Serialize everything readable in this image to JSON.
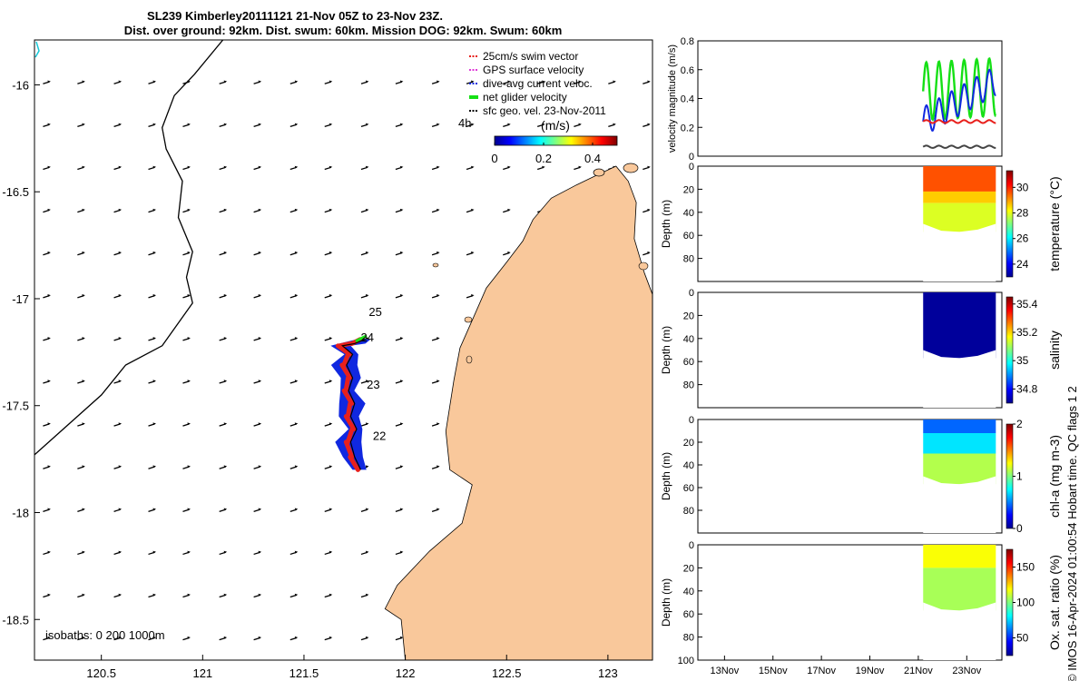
{
  "title": {
    "line1": "SL239 Kimberley20111121 21-Nov 05Z to 23-Nov 23Z.",
    "line2": "Dist. over ground: 92km. Dist. swum: 60km. Mission DOG: 92km. Swum: 60km"
  },
  "colors": {
    "land": "#f9c89b",
    "swim_vector": "#e8201c",
    "gps_velocity": "#e03ad8",
    "dive_avg_current": "#1028e0",
    "net_glider_velocity": "#16e016",
    "sfc_geo": "#000000",
    "track_start": "#17c8d8"
  },
  "chart_data": [
    {
      "type": "map",
      "name": "glider-track-map",
      "x_ticks": [
        "120.5",
        "121",
        "121.5",
        "122",
        "122.5",
        "123"
      ],
      "x_tick_values": [
        120.5,
        121,
        121.5,
        122,
        122.5,
        123
      ],
      "y_ticks": [
        "-16",
        "-16.5",
        "-17",
        "-17.5",
        "-18",
        "-18.5"
      ],
      "y_tick_values": [
        -16,
        -16.5,
        -17,
        -17.5,
        -18,
        -18.5
      ],
      "xlim": [
        120.17,
        123.22
      ],
      "ylim": [
        -18.69,
        -15.79
      ],
      "legend": [
        {
          "label": "25cm/s swim vector",
          "color": "#e8201c"
        },
        {
          "label": "GPS surface velocity",
          "color": "#e03ad8"
        },
        {
          "label": "dive-avg current veloc.",
          "color": "#1028e0"
        },
        {
          "label": "net glider velocity",
          "color": "#16e016"
        },
        {
          "label": "sfc geo. vel. 23-Nov-2011",
          "color": "#000000"
        }
      ],
      "extra_label": "4h",
      "colorbar": {
        "label": "(m/s)",
        "ticks": [
          "0",
          "0.2",
          "0.4"
        ],
        "tick_values": [
          0,
          0.2,
          0.4
        ],
        "range": [
          0,
          0.5
        ]
      },
      "isobath_label": "isobaths: 0   200  1000m",
      "day_labels": [
        {
          "text": "25",
          "lon": 121.82,
          "lat": -17.08
        },
        {
          "text": "24",
          "lon": 121.78,
          "lat": -17.2
        },
        {
          "text": "23",
          "lon": 121.81,
          "lat": -17.42
        },
        {
          "text": "22",
          "lon": 121.84,
          "lat": -17.66
        }
      ],
      "track": [
        {
          "lon": 121.78,
          "lat": -17.8
        },
        {
          "lon": 121.75,
          "lat": -17.74
        },
        {
          "lon": 121.73,
          "lat": -17.67
        },
        {
          "lon": 121.76,
          "lat": -17.61
        },
        {
          "lon": 121.73,
          "lat": -17.55
        },
        {
          "lon": 121.75,
          "lat": -17.49
        },
        {
          "lon": 121.72,
          "lat": -17.43
        },
        {
          "lon": 121.74,
          "lat": -17.37
        },
        {
          "lon": 121.71,
          "lat": -17.31
        },
        {
          "lon": 121.74,
          "lat": -17.26
        },
        {
          "lon": 121.69,
          "lat": -17.22
        },
        {
          "lon": 121.75,
          "lat": -17.21
        },
        {
          "lon": 121.8,
          "lat": -17.19
        }
      ],
      "coastline": [
        {
          "lon": 123.22,
          "lat": -18.69
        },
        {
          "lon": 122.0,
          "lat": -18.69
        },
        {
          "lon": 121.98,
          "lat": -18.5
        },
        {
          "lon": 121.9,
          "lat": -18.45
        },
        {
          "lon": 121.96,
          "lat": -18.34
        },
        {
          "lon": 122.12,
          "lat": -18.18
        },
        {
          "lon": 122.28,
          "lat": -18.05
        },
        {
          "lon": 122.33,
          "lat": -17.87
        },
        {
          "lon": 122.22,
          "lat": -17.8
        },
        {
          "lon": 122.2,
          "lat": -17.62
        },
        {
          "lon": 122.24,
          "lat": -17.38
        },
        {
          "lon": 122.27,
          "lat": -17.23
        },
        {
          "lon": 122.34,
          "lat": -17.08
        },
        {
          "lon": 122.4,
          "lat": -16.95
        },
        {
          "lon": 122.5,
          "lat": -16.83
        },
        {
          "lon": 122.58,
          "lat": -16.73
        },
        {
          "lon": 122.63,
          "lat": -16.63
        },
        {
          "lon": 122.72,
          "lat": -16.53
        },
        {
          "lon": 122.84,
          "lat": -16.47
        },
        {
          "lon": 122.95,
          "lat": -16.42
        },
        {
          "lon": 123.04,
          "lat": -16.38
        },
        {
          "lon": 123.1,
          "lat": -16.45
        },
        {
          "lon": 123.14,
          "lat": -16.55
        },
        {
          "lon": 123.13,
          "lat": -16.72
        },
        {
          "lon": 123.18,
          "lat": -16.88
        },
        {
          "lon": 123.22,
          "lat": -16.98
        }
      ],
      "isobath_1000m": [
        {
          "lon": 120.17,
          "lat": -17.73
        },
        {
          "lon": 120.5,
          "lat": -17.45
        },
        {
          "lon": 120.62,
          "lat": -17.31
        },
        {
          "lon": 120.8,
          "lat": -17.22
        },
        {
          "lon": 120.95,
          "lat": -17.02
        },
        {
          "lon": 120.92,
          "lat": -16.9
        },
        {
          "lon": 120.95,
          "lat": -16.78
        },
        {
          "lon": 120.88,
          "lat": -16.62
        },
        {
          "lon": 120.9,
          "lat": -16.45
        },
        {
          "lon": 120.82,
          "lat": -16.3
        },
        {
          "lon": 120.8,
          "lat": -16.2
        },
        {
          "lon": 120.86,
          "lat": -16.05
        },
        {
          "lon": 120.96,
          "lat": -15.95
        },
        {
          "lon": 121.1,
          "lat": -15.79
        }
      ],
      "current_arrow_lons": [
        120.23,
        120.4,
        120.58,
        120.75,
        120.92,
        121.1,
        121.27,
        121.45,
        121.62,
        121.8,
        121.97,
        122.15,
        122.32,
        122.5,
        122.67,
        122.85,
        123.02,
        123.19
      ],
      "current_arrow_lats": [
        -15.99,
        -16.19,
        -16.39,
        -16.59,
        -16.79,
        -16.99,
        -17.19,
        -17.39,
        -17.59,
        -17.79,
        -17.99,
        -18.19,
        -18.39,
        -18.59
      ]
    },
    {
      "type": "line",
      "name": "velocity-magnitude",
      "ylabel": "velocity magnitude (m/s)",
      "ylim": [
        0,
        0.8
      ],
      "y_ticks": [
        "0",
        "0.2",
        "0.4",
        "0.6",
        "0.8"
      ],
      "y_tick_values": [
        0,
        0.2,
        0.4,
        0.6,
        0.8
      ],
      "x_range_days": [
        11.9,
        24.45
      ],
      "series": [
        {
          "name": "net glider velocity",
          "color": "#16e016",
          "base": 0.45,
          "amp": 0.2,
          "period": 0.52,
          "trend": 0.01
        },
        {
          "name": "dive-avg current veloc.",
          "color": "#1028e0",
          "base": 0.24,
          "amp": 0.1,
          "period": 0.52,
          "trend": 0.095
        },
        {
          "name": "swim vector",
          "color": "#e8201c",
          "base": 0.24,
          "amp": 0.01,
          "period": 0.52,
          "trend": 0.0
        },
        {
          "name": "sfc geo. vel.",
          "color": "#444444",
          "base": 0.065,
          "amp": 0.008,
          "period": 0.52,
          "trend": 0.0
        }
      ],
      "data_range_days": [
        21.2,
        24.2
      ]
    },
    {
      "type": "heatmap",
      "name": "temperature-section",
      "ylabel": "Depth (m)",
      "colorbar_label": "temperature (°C)",
      "y_ticks": [
        "0",
        "20",
        "40",
        "60",
        "80"
      ],
      "y_tick_values": [
        0,
        20,
        40,
        60,
        80
      ],
      "ylim": [
        0,
        100
      ],
      "colorbar_ticks": [
        "24",
        "26",
        "28",
        "30"
      ],
      "colorbar_tick_values": [
        24,
        26,
        28,
        30
      ],
      "clim": [
        23,
        31.3
      ],
      "layers": [
        {
          "top": 0,
          "bottom": 22,
          "value": 29.6
        },
        {
          "top": 22,
          "bottom": 32,
          "value": 28.6
        },
        {
          "top": 32,
          "bottom": 57,
          "value": 27.9
        }
      ]
    },
    {
      "type": "heatmap",
      "name": "salinity-section",
      "ylabel": "Depth (m)",
      "colorbar_label": "salinity",
      "y_ticks": [
        "0",
        "20",
        "40",
        "60",
        "80"
      ],
      "y_tick_values": [
        0,
        20,
        40,
        60,
        80
      ],
      "ylim": [
        0,
        100
      ],
      "colorbar_ticks": [
        "34.8",
        "35",
        "35.2",
        "35.4"
      ],
      "colorbar_tick_values": [
        34.8,
        35,
        35.2,
        35.4
      ],
      "clim": [
        34.7,
        35.45
      ],
      "layers": [
        {
          "top": 0,
          "bottom": 57,
          "value": 34.72
        }
      ]
    },
    {
      "type": "heatmap",
      "name": "chlorophyll-section",
      "ylabel": "Depth (m)",
      "colorbar_label": "chl-a (mg m-3)",
      "y_ticks": [
        "0",
        "20",
        "40",
        "60",
        "80"
      ],
      "y_tick_values": [
        0,
        20,
        40,
        60,
        80
      ],
      "ylim": [
        0,
        100
      ],
      "colorbar_ticks": [
        "0",
        "1",
        "2"
      ],
      "colorbar_tick_values": [
        0,
        1,
        2
      ],
      "clim": [
        0,
        2
      ],
      "layers": [
        {
          "top": 0,
          "bottom": 12,
          "value": 0.45
        },
        {
          "top": 12,
          "bottom": 30,
          "value": 0.7
        },
        {
          "top": 30,
          "bottom": 57,
          "value": 1.1
        }
      ]
    },
    {
      "type": "heatmap",
      "name": "oxygen-section",
      "ylabel": "Depth (m)",
      "colorbar_label": "Ox. sat. ratio (%)",
      "y_ticks": [
        "0",
        "20",
        "40",
        "60",
        "80",
        "100"
      ],
      "y_tick_values": [
        0,
        20,
        40,
        60,
        80,
        100
      ],
      "ylim": [
        0,
        100
      ],
      "x_ticks": [
        "13Nov",
        "15Nov",
        "17Nov",
        "19Nov",
        "21Nov",
        "23Nov"
      ],
      "x_tick_values": [
        13,
        15,
        17,
        19,
        21,
        23
      ],
      "colorbar_ticks": [
        "50",
        "100",
        "150"
      ],
      "colorbar_tick_values": [
        50,
        100,
        150
      ],
      "clim": [
        25,
        175
      ],
      "layers": [
        {
          "top": 0,
          "bottom": 20,
          "value": 118
        },
        {
          "top": 20,
          "bottom": 57,
          "value": 106
        }
      ]
    }
  ],
  "footer": "© IMOS 16-Apr-2024 01:00:54 Hobart time. QC flags 1  2"
}
